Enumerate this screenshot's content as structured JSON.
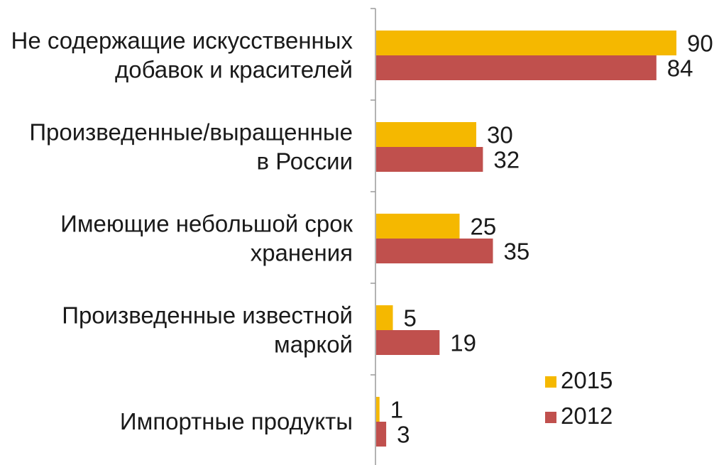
{
  "chart_data": {
    "type": "bar",
    "orientation": "horizontal",
    "categories": [
      [
        "Не содержащие искусственных",
        "добавок и красителей"
      ],
      [
        "Произведенные/выращенные",
        "в России"
      ],
      [
        "Имеющие небольшой срок",
        "хранения"
      ],
      [
        "Произведенные известной",
        "маркой"
      ],
      [
        "Импортные продукты"
      ]
    ],
    "series": [
      {
        "name": "2015",
        "color": "#f5b800",
        "values": [
          90,
          30,
          25,
          5,
          1
        ]
      },
      {
        "name": "2012",
        "color": "#c0504d",
        "values": [
          84,
          32,
          35,
          19,
          3
        ]
      }
    ],
    "xlim": [
      0,
      100
    ],
    "grid": false,
    "legend": {
      "position": "bottom-right"
    }
  }
}
